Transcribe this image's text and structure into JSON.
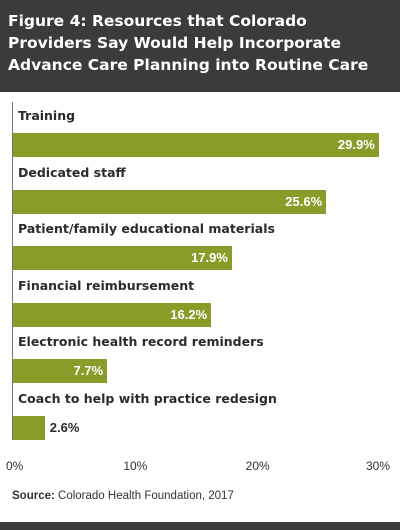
{
  "header": {
    "title": "Figure 4: Resources that Colorado Providers Say Would Help Incorporate Advance Care Planning into Routine Care"
  },
  "source": {
    "label": "Source:",
    "text": "Colorado Health Foundation, 2017"
  },
  "colors": {
    "bar": "#8a9b2a",
    "header_bg": "#3b3b3b"
  },
  "chart_data": {
    "type": "bar",
    "orientation": "horizontal",
    "title": "Figure 4: Resources that Colorado Providers Say Would Help Incorporate Advance Care Planning into Routine Care",
    "categories": [
      "Training",
      "Dedicated staff",
      "Patient/family educational materials",
      "Financial reimbursement",
      "Electronic health record reminders",
      "Coach to help with practice redesign"
    ],
    "values": [
      29.9,
      25.6,
      17.9,
      16.2,
      7.7,
      2.6
    ],
    "value_labels": [
      "29.9%",
      "25.6%",
      "17.9%",
      "16.2%",
      "7.7%",
      "2.6%"
    ],
    "xlim": [
      0,
      30
    ],
    "xticks": [
      "0%",
      "10%",
      "20%",
      "30%"
    ],
    "grid": false,
    "legend": "none"
  }
}
